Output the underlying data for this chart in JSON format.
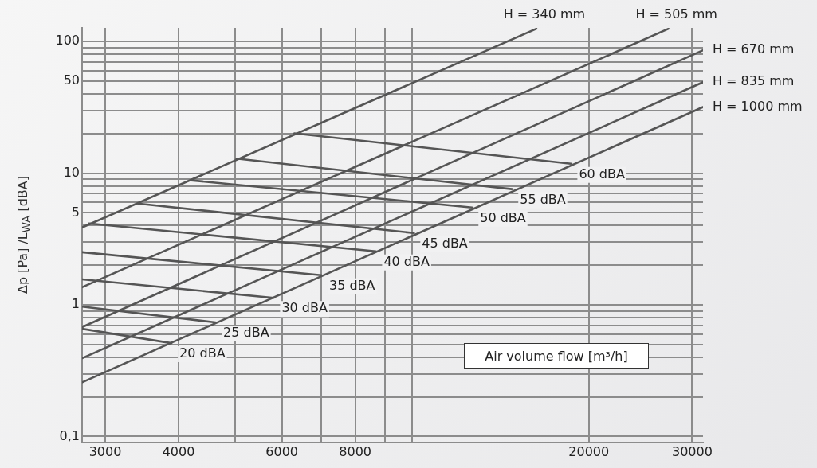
{
  "chart_data": {
    "type": "line",
    "xlabel": "Air volume flow [m³/h]",
    "ylabel": "Δp [Pa] /L$_{WA}$ [dBA]",
    "log": "xy",
    "grid": true,
    "legend": false,
    "marker": "none",
    "line_style": "solid",
    "xlim": [
      2740,
      31300
    ],
    "ylim": [
      0.09,
      127
    ],
    "xticks": [
      3000,
      4000,
      {
        "value": 5000,
        "label": null
      },
      6000,
      {
        "value": 7000,
        "label": null
      },
      8000,
      {
        "value": 9000,
        "label": null
      },
      {
        "value": 10000,
        "label": null
      },
      20000,
      30000
    ],
    "yticks": [
      {
        "value": 0.1,
        "label": "0,1"
      },
      {
        "value": 0.2,
        "label": null
      },
      {
        "value": 0.3,
        "label": null
      },
      {
        "value": 0.4,
        "label": null
      },
      {
        "value": 0.5,
        "label": null
      },
      {
        "value": 0.6,
        "label": null
      },
      {
        "value": 0.7,
        "label": null
      },
      {
        "value": 0.8,
        "label": null
      },
      {
        "value": 0.9,
        "label": null
      },
      1,
      {
        "value": 2,
        "label": null
      },
      {
        "value": 3,
        "label": null
      },
      {
        "value": 4,
        "label": null
      },
      5,
      {
        "value": 6,
        "label": null
      },
      {
        "value": 7,
        "label": null
      },
      {
        "value": 8,
        "label": null
      },
      {
        "value": 9,
        "label": null
      },
      10,
      {
        "value": 20,
        "label": null
      },
      {
        "value": 30,
        "label": null
      },
      {
        "value": 40,
        "label": null
      },
      50,
      {
        "value": 60,
        "label": null
      },
      {
        "value": 70,
        "label": null
      },
      {
        "value": 80,
        "label": null
      },
      {
        "value": 90,
        "label": null
      },
      100
    ],
    "series": [
      {
        "name": "H = 340 mm",
        "color": "#555555",
        "x": [
          2740,
          16280
        ],
        "values": [
          3.87,
          125
        ]
      },
      {
        "name": "H = 505 mm",
        "color": "#555555",
        "x": [
          2740,
          27330
        ],
        "values": [
          1.36,
          125
        ]
      },
      {
        "name": "H = 670 mm",
        "color": "#555555",
        "x": [
          2740,
          31300
        ],
        "values": [
          0.677,
          85.8
        ]
      },
      {
        "name": "H = 835 mm",
        "color": "#555555",
        "x": [
          2740,
          31300
        ],
        "values": [
          0.393,
          49.1
        ]
      },
      {
        "name": "H = 1000 mm",
        "color": "#555555",
        "x": [
          2740,
          31300
        ],
        "values": [
          0.258,
          31.8
        ]
      },
      {
        "name": "60 dBA",
        "color": "#555555",
        "x": [
          6300,
          18650
        ],
        "values": [
          20.1,
          11.8
        ]
      },
      {
        "name": "55 dBA",
        "color": "#555555",
        "x": [
          5020,
          14790
        ],
        "values": [
          12.9,
          7.57
        ]
      },
      {
        "name": "50 dBA",
        "color": "#555555",
        "x": [
          4205,
          12650
        ],
        "values": [
          8.82,
          5.49
        ]
      },
      {
        "name": "45 dBA",
        "color": "#555555",
        "x": [
          3410,
          10070
        ],
        "values": [
          5.88,
          3.51
        ]
      },
      {
        "name": "40 dBA",
        "color": "#555555",
        "x": [
          2815,
          8670
        ],
        "values": [
          4.15,
          2.55
        ]
      },
      {
        "name": "35 dBA",
        "color": "#555555",
        "x": [
          2740,
          7000
        ],
        "values": [
          2.51,
          1.68
        ]
      },
      {
        "name": "30 dBA",
        "color": "#555555",
        "x": [
          2740,
          5810
        ],
        "values": [
          1.56,
          1.13
        ]
      },
      {
        "name": "25 dBA",
        "color": "#555555",
        "x": [
          2740,
          4620
        ],
        "values": [
          0.97,
          0.736
        ]
      },
      {
        "name": "20 dBA",
        "color": "#555555",
        "x": [
          2740,
          3890
        ],
        "values": [
          0.658,
          0.512
        ]
      }
    ]
  }
}
